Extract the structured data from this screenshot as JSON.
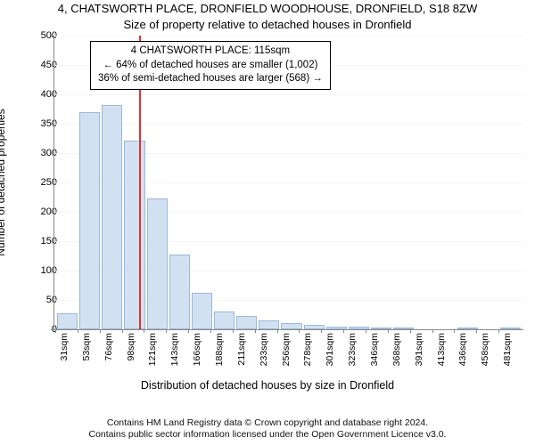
{
  "title_line1": "4, CHATSWORTH PLACE, DRONFIELD WOODHOUSE, DRONFIELD, S18 8ZW",
  "title_line2": "Size of property relative to detached houses in Dronfield",
  "y_axis_title": "Number of detached properties",
  "x_axis_title": "Distribution of detached houses by size in Dronfield",
  "footer_line1": "Contains HM Land Registry data © Crown copyright and database right 2024.",
  "footer_line2": "Contains public sector information licensed under the Open Government Licence v3.0.",
  "callout": {
    "line1": "4 CHATSWORTH PLACE: 115sqm",
    "line2": "← 64% of detached houses are smaller (1,002)",
    "line3": "36% of semi-detached houses are larger (568) →"
  },
  "chart": {
    "type": "histogram",
    "ylim": [
      0,
      500
    ],
    "ytick_step": 50,
    "bar_fill": "#d2e1f2",
    "bar_stroke": "#9ab8da",
    "grid_color": "#f5f5f5",
    "background_color": "#ffffff",
    "axis_color": "#888888",
    "ref_line_color": "#dd3333",
    "ref_value_sqm": 115,
    "x_min": 31,
    "x_step": 22.5,
    "x_tick_labels": [
      "31sqm",
      "53sqm",
      "76sqm",
      "98sqm",
      "121sqm",
      "143sqm",
      "166sqm",
      "188sqm",
      "211sqm",
      "233sqm",
      "256sqm",
      "278sqm",
      "301sqm",
      "323sqm",
      "346sqm",
      "368sqm",
      "391sqm",
      "413sqm",
      "436sqm",
      "458sqm",
      "481sqm"
    ],
    "values": [
      27,
      370,
      382,
      321,
      223,
      128,
      62,
      30,
      22,
      15,
      10,
      8,
      5,
      5,
      3,
      2,
      0,
      0,
      2,
      0,
      2
    ],
    "label_fontsize": 11,
    "title_fontsize": 13,
    "axis_title_fontsize": 12
  }
}
